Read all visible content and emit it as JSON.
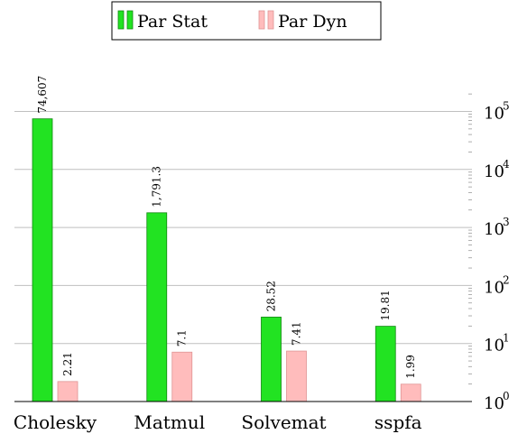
{
  "chart_data": {
    "type": "bar",
    "categories": [
      "Cholesky",
      "Matmul",
      "Solvemat",
      "sspfa"
    ],
    "series": [
      {
        "name": "Par Stat",
        "values": [
          74607,
          1791.3,
          28.52,
          19.81
        ],
        "labels": [
          "74,607",
          "1,791.3",
          "28.52",
          "19.81"
        ],
        "color": "#22e322",
        "stroke": "#118811"
      },
      {
        "name": "Par Dyn",
        "values": [
          2.21,
          7.1,
          7.41,
          1.99
        ],
        "labels": [
          "2.21",
          "7.1",
          "7.41",
          "1.99"
        ],
        "color": "#ffbcbc",
        "stroke": "#e09494"
      }
    ],
    "yscale": "log",
    "ylim": [
      1,
      200000
    ],
    "yticks": [
      {
        "base": "10",
        "exp": "0",
        "value": 1
      },
      {
        "base": "10",
        "exp": "1",
        "value": 10
      },
      {
        "base": "10",
        "exp": "2",
        "value": 100
      },
      {
        "base": "10",
        "exp": "3",
        "value": 1000
      },
      {
        "base": "10",
        "exp": "4",
        "value": 10000
      },
      {
        "base": "10",
        "exp": "5",
        "value": 100000
      }
    ],
    "yaxis_position": "right",
    "grid": true,
    "legend_position": "top-center",
    "title": "",
    "xlabel": "",
    "ylabel": ""
  }
}
